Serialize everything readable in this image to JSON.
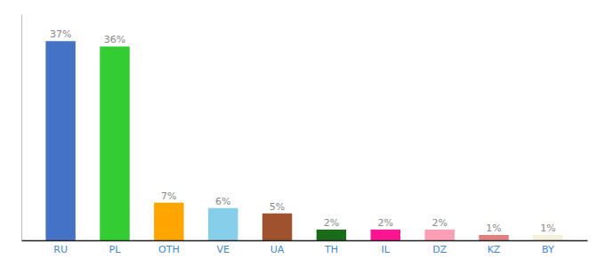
{
  "chart_data": {
    "type": "bar",
    "categories": [
      "RU",
      "PL",
      "OTH",
      "VE",
      "UA",
      "TH",
      "IL",
      "DZ",
      "KZ",
      "BY"
    ],
    "values": [
      37,
      36,
      7,
      6,
      5,
      2,
      2,
      2,
      1,
      1
    ],
    "value_labels": [
      "37%",
      "36%",
      "7%",
      "6%",
      "5%",
      "2%",
      "2%",
      "2%",
      "1%",
      "1%"
    ],
    "colors": [
      "#4472c4",
      "#33cc33",
      "#ffa500",
      "#87ceeb",
      "#a0522d",
      "#1a6b1a",
      "#ff1493",
      "#ff9eb5",
      "#e08080",
      "#f5f0dc"
    ],
    "ylim": [
      0,
      42
    ],
    "data_labels": true,
    "tick_labels": "x",
    "grid": false
  }
}
